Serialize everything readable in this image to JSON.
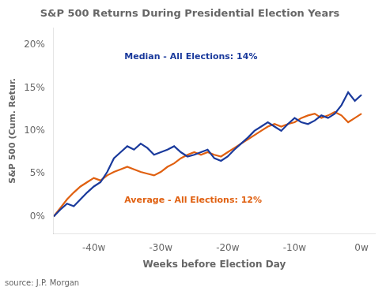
{
  "chart_data": {
    "type": "line",
    "title": "S&P 500 Returns During Presidential Election Years",
    "source": "source: J.P. Morgan",
    "x_label": "Weeks before Election Day",
    "y_label": "S&P 500 (Cum. Retur.",
    "annotations": [
      {
        "text": "Median - All Elections: 14%",
        "color": "#1a3a9c"
      },
      {
        "text": "Average - All Elections: 12%",
        "color": "#e06010"
      }
    ],
    "x": [
      -46,
      -45,
      -44,
      -43,
      -42,
      -41,
      -40,
      -39,
      -38,
      -37,
      -36,
      -35,
      -34,
      -33,
      -32,
      -31,
      -30,
      -29,
      -28,
      -27,
      -26,
      -25,
      -24,
      -23,
      -22,
      -21,
      -20,
      -19,
      -18,
      -17,
      -16,
      -15,
      -14,
      -13,
      -12,
      -11,
      -10,
      -9,
      -8,
      -7,
      -6,
      -5,
      -4,
      -3,
      -2,
      -1,
      0
    ],
    "series": [
      {
        "color": "#1a3a9c",
        "values": [
          0.0,
          0.8,
          1.5,
          1.2,
          2.0,
          2.8,
          3.5,
          4.0,
          5.2,
          6.8,
          7.5,
          8.2,
          7.8,
          8.5,
          8.0,
          7.2,
          7.5,
          7.8,
          8.2,
          7.5,
          7.0,
          7.2,
          7.5,
          7.8,
          6.8,
          6.5,
          7.0,
          7.8,
          8.5,
          9.2,
          10.0,
          10.5,
          11.0,
          10.5,
          10.0,
          10.8,
          11.5,
          11.0,
          10.8,
          11.2,
          11.8,
          11.5,
          12.0,
          13.0,
          14.5,
          13.5,
          14.2
        ]
      },
      {
        "color": "#e06010",
        "values": [
          0.0,
          1.0,
          2.0,
          2.8,
          3.5,
          4.0,
          4.5,
          4.2,
          4.8,
          5.2,
          5.5,
          5.8,
          5.5,
          5.2,
          5.0,
          4.8,
          5.2,
          5.8,
          6.2,
          6.8,
          7.2,
          7.5,
          7.2,
          7.5,
          7.2,
          7.0,
          7.5,
          8.0,
          8.5,
          9.0,
          9.5,
          10.0,
          10.5,
          10.8,
          10.5,
          10.8,
          11.0,
          11.5,
          11.8,
          12.0,
          11.5,
          11.8,
          12.2,
          11.8,
          11.0,
          11.5,
          12.0
        ]
      }
    ],
    "xlim": [
      -46,
      2
    ],
    "ylim": [
      -2,
      22
    ],
    "xticks": [
      {
        "value": -40,
        "label": "-40w"
      },
      {
        "value": -30,
        "label": "-30w"
      },
      {
        "value": -20,
        "label": "-20w"
      },
      {
        "value": -10,
        "label": "-10w"
      },
      {
        "value": 0,
        "label": "0w"
      }
    ],
    "yticks": [
      {
        "value": 0,
        "label": "0%"
      },
      {
        "value": 5,
        "label": "5%"
      },
      {
        "value": 10,
        "label": "10%"
      },
      {
        "value": 15,
        "label": "15%"
      },
      {
        "value": 20,
        "label": "20%"
      }
    ],
    "grid": false,
    "legend": false
  }
}
